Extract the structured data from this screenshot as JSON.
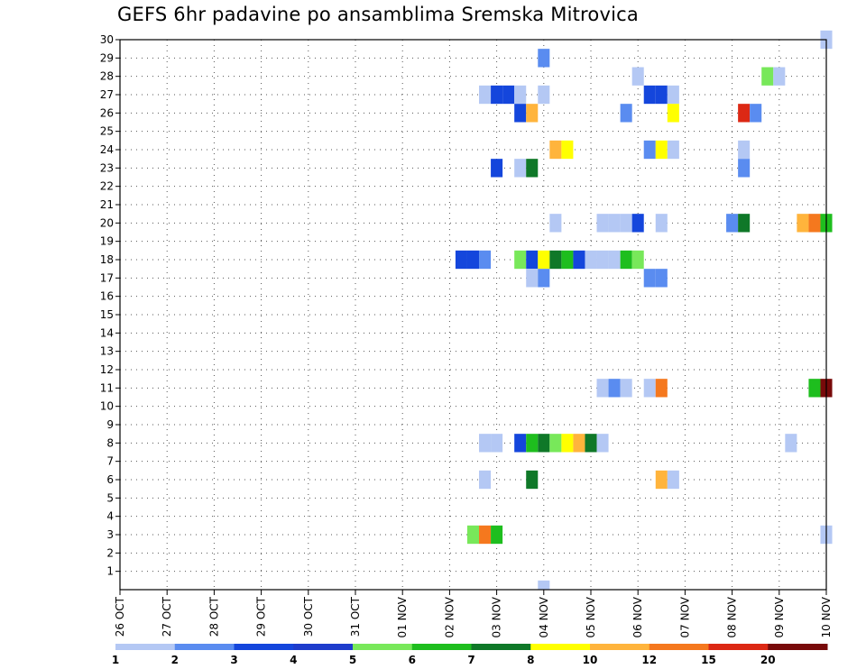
{
  "title": "GEFS 6hr padavine po ansamblima Sremska Mitrovica",
  "chart_data": {
    "type": "heatmap",
    "title": "GEFS 6hr padavine po ansamblima Sremska Mitrovica",
    "xlabel": "",
    "ylabel": "",
    "x_tick_labels": [
      "26 OCT",
      "27 OCT",
      "28 OCT",
      "29 OCT",
      "30 OCT",
      "31 OCT",
      "01 NOV",
      "02 NOV",
      "03 NOV",
      "04 NOV",
      "05 NOV",
      "06 NOV",
      "07 NOV",
      "08 NOV",
      "09 NOV",
      "10 NOV"
    ],
    "x_range_steps": [
      0,
      60
    ],
    "y_tick_labels": [
      "1",
      "2",
      "3",
      "4",
      "5",
      "6",
      "7",
      "8",
      "9",
      "10",
      "11",
      "12",
      "13",
      "14",
      "15",
      "16",
      "17",
      "18",
      "19",
      "20",
      "21",
      "22",
      "23",
      "24",
      "25",
      "26",
      "27",
      "28",
      "29",
      "30"
    ],
    "y_range": [
      0,
      30
    ],
    "grid": true,
    "legend_position": "bottom",
    "legend": {
      "labels": [
        "1",
        "2",
        "3",
        "4",
        "5",
        "6",
        "7",
        "8",
        "10",
        "12",
        "15",
        "20"
      ],
      "colors": [
        "#b4c8f4",
        "#5a8cf0",
        "#1446dc",
        "#1e3ccc",
        "#78e85a",
        "#1ebe1e",
        "#0f7828",
        "#ffff00",
        "#ffb43c",
        "#f5781e",
        "#dc2814",
        "#780a0a"
      ]
    },
    "cells": [
      {
        "member": 30,
        "step": 60,
        "color": "#b4c8f4"
      },
      {
        "member": 29,
        "step": 36,
        "color": "#5a8cf0"
      },
      {
        "member": 28,
        "step": 44,
        "color": "#b4c8f4"
      },
      {
        "member": 28,
        "step": 55,
        "color": "#78e85a"
      },
      {
        "member": 28,
        "step": 56,
        "color": "#b4c8f4"
      },
      {
        "member": 27,
        "step": 31,
        "color": "#b4c8f4"
      },
      {
        "member": 27,
        "step": 32,
        "color": "#1446dc"
      },
      {
        "member": 27,
        "step": 33,
        "color": "#1446dc"
      },
      {
        "member": 27,
        "step": 34,
        "color": "#b4c8f4"
      },
      {
        "member": 27,
        "step": 36,
        "color": "#b4c8f4"
      },
      {
        "member": 27,
        "step": 45,
        "color": "#1446dc"
      },
      {
        "member": 27,
        "step": 46,
        "color": "#1446dc"
      },
      {
        "member": 27,
        "step": 47,
        "color": "#b4c8f4"
      },
      {
        "member": 26,
        "step": 34,
        "color": "#1446dc"
      },
      {
        "member": 26,
        "step": 35,
        "color": "#ffb43c"
      },
      {
        "member": 26,
        "step": 43,
        "color": "#5a8cf0"
      },
      {
        "member": 26,
        "step": 47,
        "color": "#ffff00"
      },
      {
        "member": 26,
        "step": 53,
        "color": "#dc2814"
      },
      {
        "member": 26,
        "step": 54,
        "color": "#5a8cf0"
      },
      {
        "member": 24,
        "step": 37,
        "color": "#ffb43c"
      },
      {
        "member": 24,
        "step": 38,
        "color": "#ffff00"
      },
      {
        "member": 24,
        "step": 45,
        "color": "#5a8cf0"
      },
      {
        "member": 24,
        "step": 46,
        "color": "#ffff00"
      },
      {
        "member": 24,
        "step": 47,
        "color": "#b4c8f4"
      },
      {
        "member": 24,
        "step": 53,
        "color": "#b4c8f4"
      },
      {
        "member": 23,
        "step": 32,
        "color": "#1446dc"
      },
      {
        "member": 23,
        "step": 34,
        "color": "#b4c8f4"
      },
      {
        "member": 23,
        "step": 35,
        "color": "#0f7828"
      },
      {
        "member": 23,
        "step": 53,
        "color": "#5a8cf0"
      },
      {
        "member": 20,
        "step": 37,
        "color": "#b4c8f4"
      },
      {
        "member": 20,
        "step": 41,
        "color": "#b4c8f4"
      },
      {
        "member": 20,
        "step": 42,
        "color": "#b4c8f4"
      },
      {
        "member": 20,
        "step": 43,
        "color": "#b4c8f4"
      },
      {
        "member": 20,
        "step": 44,
        "color": "#1446dc"
      },
      {
        "member": 20,
        "step": 46,
        "color": "#b4c8f4"
      },
      {
        "member": 20,
        "step": 52,
        "color": "#5a8cf0"
      },
      {
        "member": 20,
        "step": 53,
        "color": "#0f7828"
      },
      {
        "member": 20,
        "step": 58,
        "color": "#ffb43c"
      },
      {
        "member": 20,
        "step": 59,
        "color": "#f5781e"
      },
      {
        "member": 20,
        "step": 60,
        "color": "#1ebe1e"
      },
      {
        "member": 18,
        "step": 29,
        "color": "#1446dc"
      },
      {
        "member": 18,
        "step": 30,
        "color": "#1446dc"
      },
      {
        "member": 18,
        "step": 31,
        "color": "#5a8cf0"
      },
      {
        "member": 18,
        "step": 34,
        "color": "#78e85a"
      },
      {
        "member": 18,
        "step": 35,
        "color": "#1446dc"
      },
      {
        "member": 18,
        "step": 36,
        "color": "#ffff00"
      },
      {
        "member": 18,
        "step": 37,
        "color": "#0f7828"
      },
      {
        "member": 18,
        "step": 38,
        "color": "#1ebe1e"
      },
      {
        "member": 18,
        "step": 39,
        "color": "#1446dc"
      },
      {
        "member": 18,
        "step": 40,
        "color": "#b4c8f4"
      },
      {
        "member": 18,
        "step": 41,
        "color": "#b4c8f4"
      },
      {
        "member": 18,
        "step": 42,
        "color": "#b4c8f4"
      },
      {
        "member": 18,
        "step": 43,
        "color": "#1ebe1e"
      },
      {
        "member": 18,
        "step": 44,
        "color": "#78e85a"
      },
      {
        "member": 17,
        "step": 45,
        "color": "#5a8cf0"
      },
      {
        "member": 17,
        "step": 46,
        "color": "#5a8cf0"
      },
      {
        "member": 17,
        "step": 35,
        "color": "#b4c8f4"
      },
      {
        "member": 17,
        "step": 36,
        "color": "#5a8cf0"
      },
      {
        "member": 11,
        "step": 41,
        "color": "#b4c8f4"
      },
      {
        "member": 11,
        "step": 42,
        "color": "#5a8cf0"
      },
      {
        "member": 11,
        "step": 43,
        "color": "#b4c8f4"
      },
      {
        "member": 11,
        "step": 45,
        "color": "#b4c8f4"
      },
      {
        "member": 11,
        "step": 46,
        "color": "#f5781e"
      },
      {
        "member": 11,
        "step": 59,
        "color": "#1ebe1e"
      },
      {
        "member": 11,
        "step": 60,
        "color": "#780a0a"
      },
      {
        "member": 8,
        "step": 31,
        "color": "#b4c8f4"
      },
      {
        "member": 8,
        "step": 32,
        "color": "#b4c8f4"
      },
      {
        "member": 8,
        "step": 34,
        "color": "#1446dc"
      },
      {
        "member": 8,
        "step": 35,
        "color": "#1ebe1e"
      },
      {
        "member": 8,
        "step": 36,
        "color": "#0f7828"
      },
      {
        "member": 8,
        "step": 37,
        "color": "#78e85a"
      },
      {
        "member": 8,
        "step": 38,
        "color": "#ffff00"
      },
      {
        "member": 8,
        "step": 39,
        "color": "#ffb43c"
      },
      {
        "member": 8,
        "step": 40,
        "color": "#0f7828"
      },
      {
        "member": 8,
        "step": 41,
        "color": "#b4c8f4"
      },
      {
        "member": 8,
        "step": 57,
        "color": "#b4c8f4"
      },
      {
        "member": 6,
        "step": 31,
        "color": "#b4c8f4"
      },
      {
        "member": 6,
        "step": 35,
        "color": "#0f7828"
      },
      {
        "member": 6,
        "step": 46,
        "color": "#ffb43c"
      },
      {
        "member": 6,
        "step": 47,
        "color": "#b4c8f4"
      },
      {
        "member": 3,
        "step": 30,
        "color": "#78e85a"
      },
      {
        "member": 3,
        "step": 31,
        "color": "#f5781e"
      },
      {
        "member": 3,
        "step": 32,
        "color": "#1ebe1e"
      },
      {
        "member": 3,
        "step": 60,
        "color": "#b4c8f4"
      },
      {
        "member": 0,
        "step": 36,
        "color": "#b4c8f4"
      }
    ]
  }
}
